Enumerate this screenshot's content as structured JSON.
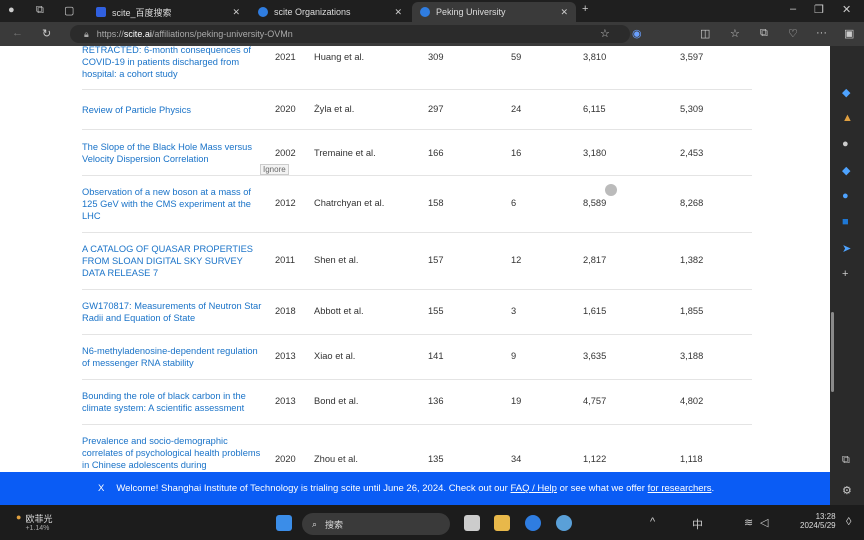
{
  "browser": {
    "tabs": [
      {
        "label": "scite_百度搜索"
      },
      {
        "label": "scite Organizations"
      },
      {
        "label": "Peking University",
        "active": true
      }
    ],
    "url_prefix": "https://",
    "url_domain": "scite.ai",
    "url_path": "/affiliations/peking-university-OVMn"
  },
  "table": {
    "rows": [
      {
        "title": "RETRACTED: 6-month consequences of COVID-19 in patients discharged from hospital: a cohort study",
        "year": "2021",
        "authors": "Huang et al.",
        "c1": "309",
        "c2": "59",
        "c3": "3,810",
        "c4": "3,597"
      },
      {
        "title": "Review of Particle Physics",
        "year": "2020",
        "authors": "Żyla et al.",
        "c1": "297",
        "c2": "24",
        "c3": "6,115",
        "c4": "5,309"
      },
      {
        "title": "The Slope of the Black Hole Mass versus Velocity Dispersion Correlation",
        "year": "2002",
        "authors": "Tremaine et al.",
        "c1": "166",
        "c2": "16",
        "c3": "3,180",
        "c4": "2,453"
      },
      {
        "title": "Observation of a new boson at a mass of 125 GeV with the CMS experiment at the LHC",
        "year": "2012",
        "authors": "Chatrchyan et al.",
        "c1": "158",
        "c2": "6",
        "c3": "8,589",
        "c4": "8,268"
      },
      {
        "title": "A CATALOG OF QUASAR PROPERTIES FROM SLOAN DIGITAL SKY SURVEY DATA RELEASE 7",
        "year": "2011",
        "authors": "Shen et al.",
        "c1": "157",
        "c2": "12",
        "c3": "2,817",
        "c4": "1,382"
      },
      {
        "title": "GW170817: Measurements of Neutron Star Radii and Equation of State",
        "year": "2018",
        "authors": "Abbott et al.",
        "c1": "155",
        "c2": "3",
        "c3": "1,615",
        "c4": "1,855"
      },
      {
        "title": "N6-methyladenosine-dependent regulation of messenger RNA stability",
        "year": "2013",
        "authors": "Xiao et al.",
        "c1": "141",
        "c2": "9",
        "c3": "3,635",
        "c4": "3,188"
      },
      {
        "title": "Bounding the role of black carbon in the climate system: A scientific assessment",
        "year": "2013",
        "authors": "Bond et al.",
        "c1": "136",
        "c2": "19",
        "c3": "4,757",
        "c4": "4,802"
      },
      {
        "title": "Prevalence and socio-demographic correlates of psychological health problems in Chinese adolescents during",
        "year": "2020",
        "authors": "Zhou et al.",
        "c1": "135",
        "c2": "34",
        "c3": "1,122",
        "c4": "1,118"
      }
    ],
    "tooltip": "Ignore"
  },
  "banner": {
    "close": "X",
    "text": "Welcome! Shanghai Institute of Technology is trialing scite until June 26, 2024. Check out our",
    "link1": "FAQ / Help",
    "mid": "or see what we offer",
    "link2": "for researchers",
    "end": "."
  },
  "taskbar": {
    "stock_name": "欧菲光",
    "stock_change": "+1.14%",
    "search": "搜索",
    "ime": "中",
    "time": "13:28",
    "date": "2024/5/29"
  }
}
